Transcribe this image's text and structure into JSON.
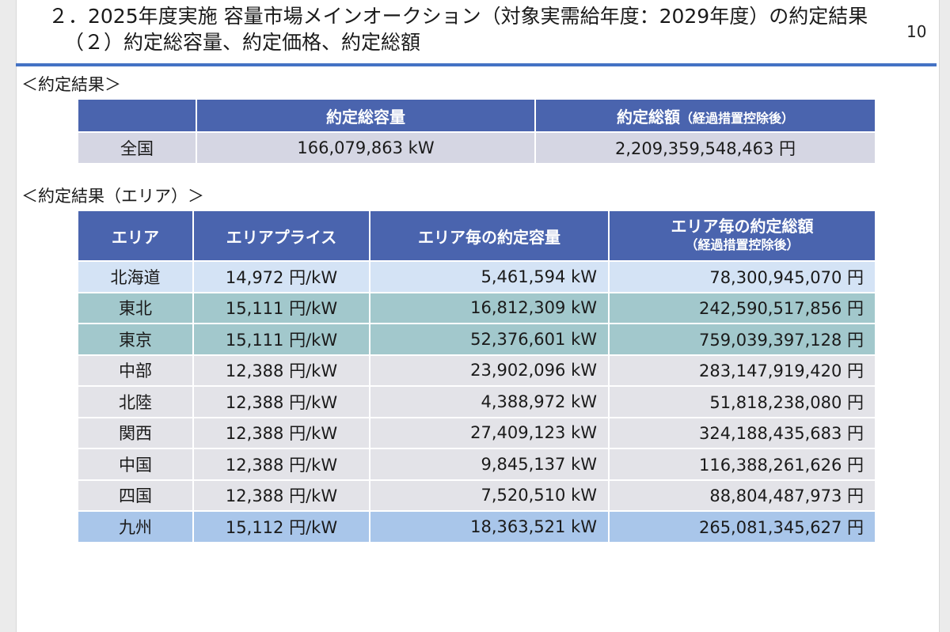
{
  "page": {
    "title_line1": "２．2025年度実施 容量市場メインオークション（対象実需給年度：2029年度）の約定結果",
    "title_line2": "（２）約定総容量、約定価格、約定総額",
    "page_number": "10"
  },
  "summary": {
    "section_label": "＜約定結果＞",
    "headers": {
      "blank": "",
      "capacity": "約定総容量",
      "amount": "約定総額",
      "amount_note": "（経過措置控除後）"
    },
    "row": {
      "region": "全国",
      "capacity": "166,079,863 kW",
      "amount": "2,209,359,548,463 円"
    },
    "row_color": "#d5d6e3"
  },
  "area": {
    "section_label": "＜約定結果（エリア）＞",
    "headers": {
      "area": "エリア",
      "price": "エリアプライス",
      "capacity": "エリア毎の約定容量",
      "amount": "エリア毎の約定総額",
      "amount_note": "（経過措置控除後）"
    },
    "header_color": "#4a64ae",
    "rows": [
      {
        "area": "北海道",
        "price": "14,972 円/kW",
        "capacity": "5,461,594 kW",
        "amount": "78,300,945,070 円",
        "color": "#d4e3f5"
      },
      {
        "area": "東北",
        "price": "15,111 円/kW",
        "capacity": "16,812,309 kW",
        "amount": "242,590,517,856 円",
        "color": "#a2c8cc"
      },
      {
        "area": "東京",
        "price": "15,111 円/kW",
        "capacity": "52,376,601 kW",
        "amount": "759,039,397,128 円",
        "color": "#a2c8cc"
      },
      {
        "area": "中部",
        "price": "12,388 円/kW",
        "capacity": "23,902,096 kW",
        "amount": "283,147,919,420 円",
        "color": "#e3e3e8"
      },
      {
        "area": "北陸",
        "price": "12,388 円/kW",
        "capacity": "4,388,972 kW",
        "amount": "51,818,238,080 円",
        "color": "#e3e3e8"
      },
      {
        "area": "関西",
        "price": "12,388 円/kW",
        "capacity": "27,409,123 kW",
        "amount": "324,188,435,683 円",
        "color": "#e3e3e8"
      },
      {
        "area": "中国",
        "price": "12,388 円/kW",
        "capacity": "9,845,137 kW",
        "amount": "116,388,261,626 円",
        "color": "#e3e3e8"
      },
      {
        "area": "四国",
        "price": "12,388 円/kW",
        "capacity": "7,520,510 kW",
        "amount": "88,804,487,973 円",
        "color": "#e3e3e8"
      },
      {
        "area": "九州",
        "price": "15,112 円/kW",
        "capacity": "18,363,521 kW",
        "amount": "265,081,345,627 円",
        "color": "#a9c6ea"
      }
    ]
  }
}
